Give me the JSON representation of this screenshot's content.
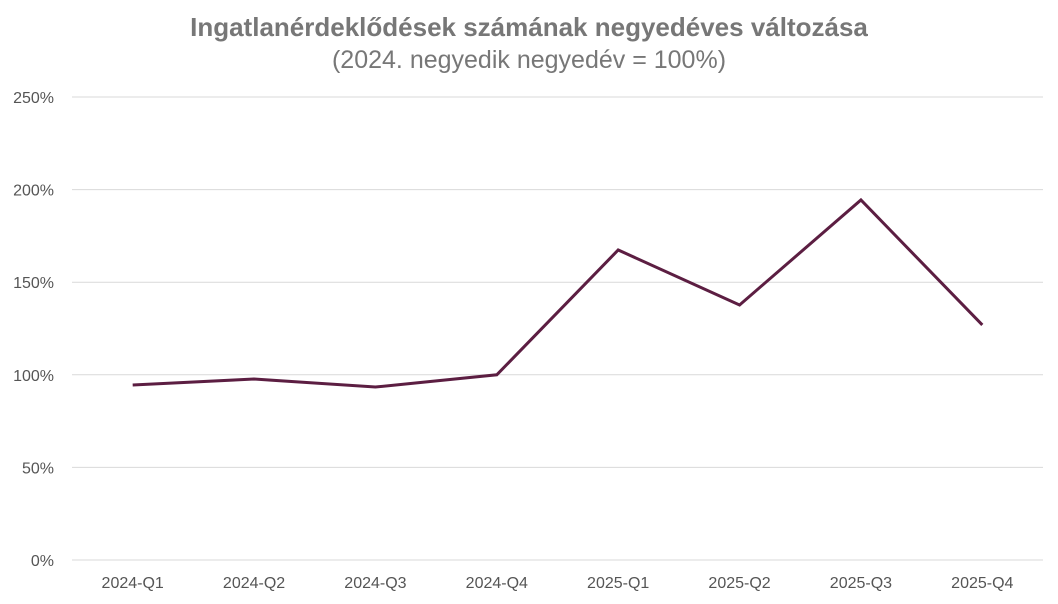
{
  "chart_data": {
    "type": "line",
    "title": "Ingatlanérdeklődések számának negyedéves változása",
    "subtitle": "(2024. negyedik negyedév = 100%)",
    "xlabel": "",
    "ylabel": "",
    "categories": [
      "2024-Q1",
      "2024-Q2",
      "2024-Q3",
      "2024-Q4",
      "2025-Q1",
      "2025-Q2",
      "2025-Q3",
      "2025-Q4"
    ],
    "series": [
      {
        "name": "Ingatlanérdeklődések",
        "values": [
          94.5,
          97.7,
          93.4,
          100,
          167.4,
          137.7,
          194.4,
          126.9
        ],
        "color": "#5c1e42"
      }
    ],
    "ylim": [
      0,
      250
    ],
    "yticks": [
      0,
      50,
      100,
      150,
      200,
      250
    ],
    "ytick_labels": [
      "0%",
      "50%",
      "100%",
      "150%",
      "200%",
      "250%"
    ],
    "grid": true,
    "legend": "none"
  }
}
